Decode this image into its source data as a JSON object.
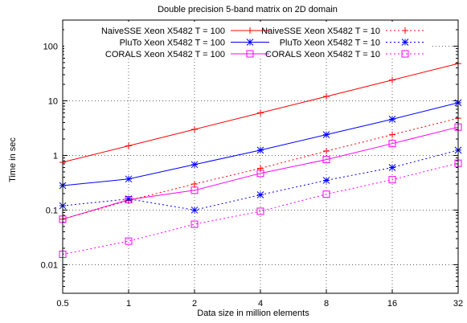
{
  "chart_data": {
    "type": "line",
    "title": "Double precision 5-band matrix on 2D domain",
    "xlabel": "Data size in million elements",
    "ylabel": "Time in sec",
    "x": [
      0.5,
      1,
      2,
      4,
      8,
      16,
      32
    ],
    "x_tick_labels": [
      "0.5",
      "1",
      "2",
      "4",
      "8",
      "16",
      "32"
    ],
    "x_scale": "log2",
    "xlim": [
      0.5,
      32
    ],
    "y_scale": "log10",
    "ylim": [
      0.003,
      300
    ],
    "y_ticks": [
      0.01,
      0.1,
      1,
      10,
      100
    ],
    "y_tick_labels": [
      "0.01",
      "0.1",
      "1",
      "10",
      "100"
    ],
    "grid": true,
    "legend_position": "top",
    "series": [
      {
        "name": "NaiveSSE Xeon X5482 T = 100",
        "color": "#ff0000",
        "marker": "plus",
        "line": "solid",
        "values": [
          0.75,
          1.5,
          3.0,
          6.0,
          12.0,
          24.0,
          48.0
        ]
      },
      {
        "name": "PluTo Xeon X5482 T = 100",
        "color": "#0000ff",
        "marker": "star",
        "line": "solid",
        "values": [
          0.28,
          0.37,
          0.68,
          1.25,
          2.4,
          4.6,
          9.2
        ]
      },
      {
        "name": "CORALS Xeon X5482 T = 100",
        "color": "#ff00ff",
        "marker": "square",
        "line": "solid",
        "values": [
          0.068,
          0.155,
          0.23,
          0.47,
          0.84,
          1.65,
          3.3
        ]
      },
      {
        "name": "NaiveSSE Xeon X5482 T = 10",
        "color": "#ff0000",
        "marker": "plus",
        "line": "dotted",
        "values": [
          0.068,
          0.15,
          0.3,
          0.58,
          1.2,
          2.4,
          4.8
        ]
      },
      {
        "name": "PluTo Xeon X5482 T = 10",
        "color": "#0000ff",
        "marker": "star",
        "line": "dotted",
        "values": [
          0.12,
          0.16,
          0.1,
          0.19,
          0.35,
          0.6,
          1.25
        ]
      },
      {
        "name": "CORALS Xeon X5482 T = 10",
        "color": "#ff00ff",
        "marker": "square",
        "line": "dotted",
        "values": [
          0.0155,
          0.027,
          0.055,
          0.095,
          0.195,
          0.36,
          0.72
        ]
      }
    ]
  }
}
